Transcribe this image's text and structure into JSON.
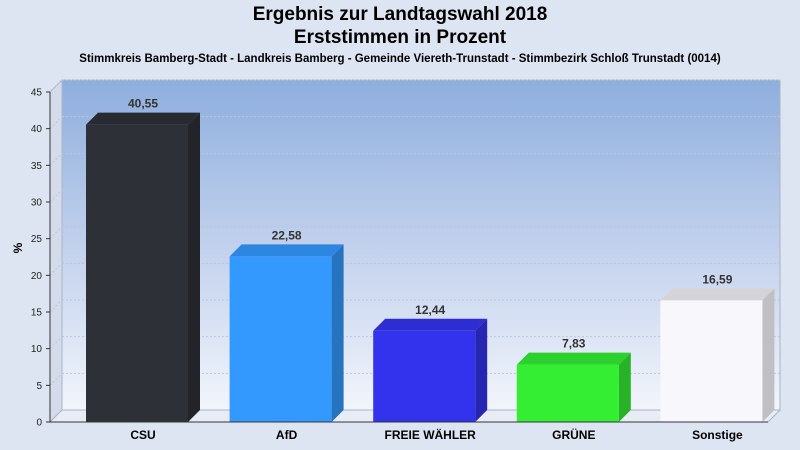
{
  "chart_data": {
    "type": "bar",
    "title": "Ergebnis zur Landtagswahl 2018",
    "subtitle": "Erststimmen in Prozent",
    "caption": "Stimmkreis Bamberg-Stadt - Landkreis Bamberg - Gemeinde Viereth-Trunstadt - Stimmbezirk Schloß Trunstadt (0014)",
    "ylabel": "%",
    "xlabel": "",
    "ylim": [
      0,
      45
    ],
    "yticks": [
      0,
      5,
      10,
      15,
      20,
      25,
      30,
      35,
      40,
      45
    ],
    "categories": [
      "CSU",
      "AfD",
      "FREIE WÄHLER",
      "GRÜNE",
      "Sonstige"
    ],
    "values": [
      40.55,
      22.58,
      12.44,
      7.83,
      16.59
    ],
    "value_labels": [
      "40,55",
      "22,58",
      "12,44",
      "7,83",
      "16,59"
    ],
    "colors": [
      "#2e3038",
      "#3399ff",
      "#3333ee",
      "#33ee33",
      "#f8f8fc"
    ],
    "grid": true,
    "legend": "none"
  }
}
